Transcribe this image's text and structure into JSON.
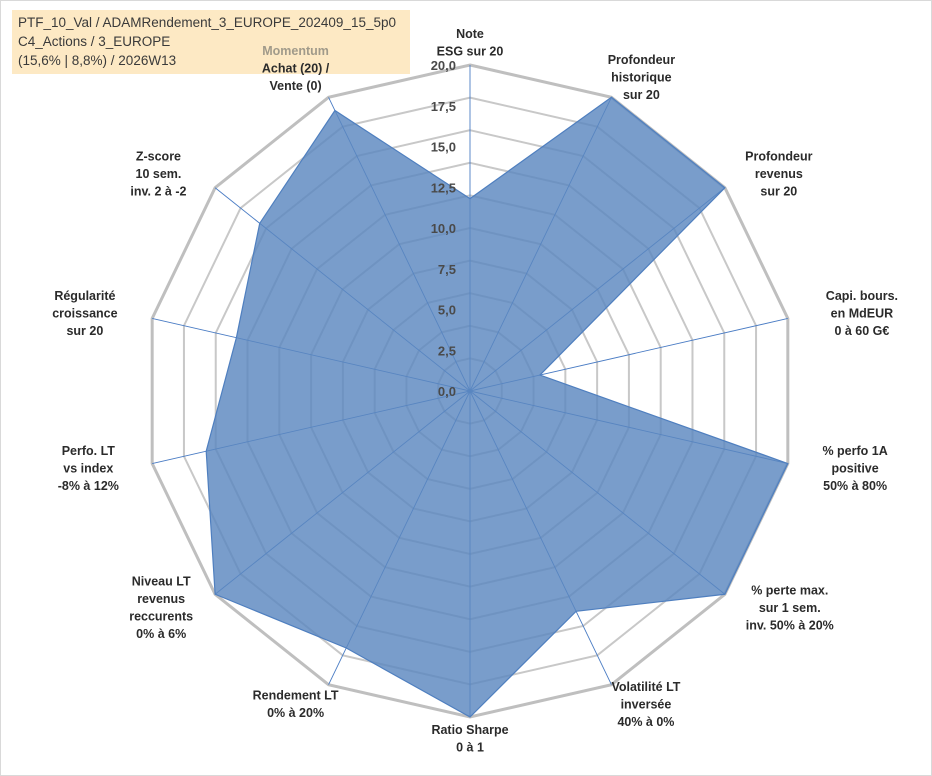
{
  "info": {
    "line1": "PTF_10_Val / ADAMRendement_3_EUROPE_202409_15_5p0",
    "line2": "C4_Actions / 3_EUROPE",
    "line3": "(15,6% | 8,8%) / 2026W13"
  },
  "colors": {
    "fill": "#5b88bf",
    "stroke": "#4f7fbf",
    "outer_grid": "#bfbfbf",
    "inner_grid": "#c8c8c8",
    "spoke": "#4a7cc4"
  },
  "chart_data": {
    "type": "radar",
    "title": "",
    "rmax": 20,
    "ticks": [
      "0,0",
      "2,5",
      "5,0",
      "7,5",
      "10,0",
      "12,5",
      "15,0",
      "17,5",
      "20,0"
    ],
    "tick_values": [
      0,
      2.5,
      5,
      7.5,
      10,
      12.5,
      15,
      17.5,
      20
    ],
    "momentum_label": "Momentum",
    "axes": [
      {
        "label": [
          "Note",
          "ESG sur 20"
        ],
        "value": 11.8
      },
      {
        "label": [
          "Profondeur",
          "historique",
          "sur 20"
        ],
        "value": 20
      },
      {
        "label": [
          "Profondeur",
          "revenus",
          "sur 20"
        ],
        "value": 20
      },
      {
        "label": [
          "Capi. bours.",
          "en MdEUR",
          "0 à 60 G€"
        ],
        "value": 4.4
      },
      {
        "label": [
          "% perfo 1A",
          "positive",
          "50% à 80%"
        ],
        "value": 20
      },
      {
        "label": [
          "% perte max.",
          "sur 1 sem.",
          "inv. 50% à 20%"
        ],
        "value": 20
      },
      {
        "label": [
          "Volatilité LT",
          "inversée",
          "40% à 0%"
        ],
        "value": 15
      },
      {
        "label": [
          "Ratio Sharpe",
          "0 à 1"
        ],
        "value": 20
      },
      {
        "label": [
          "Rendement LT",
          "0% à 20%"
        ],
        "value": 17.5
      },
      {
        "label": [
          "Niveau LT",
          "revenus",
          "reccurents",
          "0% à 6%"
        ],
        "value": 20
      },
      {
        "label": [
          "Perfo. LT",
          "vs index",
          "-8% à 12%"
        ],
        "value": 16.6
      },
      {
        "label": [
          "Régularité",
          "croissance",
          "sur 20"
        ],
        "value": 14.7
      },
      {
        "label": [
          "Z-score",
          "10 sem.",
          "inv. 2 à -2"
        ],
        "value": 16.5
      },
      {
        "label": [
          "Achat (20) /",
          "Vente (0)"
        ],
        "value": 19.1
      }
    ]
  }
}
